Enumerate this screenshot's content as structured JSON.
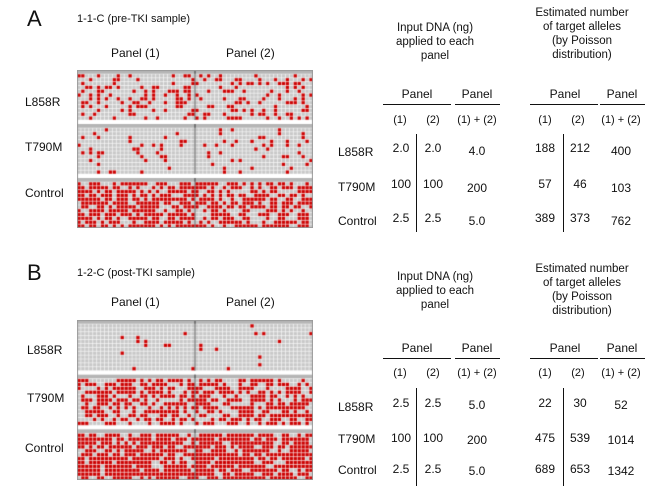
{
  "figure": {
    "sections": [
      {
        "letter": "A",
        "sample": "1-1-C  (pre-TKI  sample)",
        "panels": [
          "Panel (1)",
          "Panel (2)"
        ],
        "genes": [
          "L858R",
          "T790M",
          "Control"
        ],
        "input_header": [
          "Input DNA  (ng)",
          "applied to each",
          "panel"
        ],
        "estimated_header": [
          "Estimated number",
          "of target alleles",
          "(by Poisson",
          "distribution)"
        ],
        "table_panel_label": "Panel",
        "col1": "(1)",
        "col2": "(2)",
        "col_sum": "(1) + (2)",
        "rows": [
          {
            "gene": "L858R",
            "in1": "2.0",
            "in2": "2.0",
            "insum": "4.0",
            "est1": "188",
            "est2": "212",
            "estsum": "400"
          },
          {
            "gene": "T790M",
            "in1": "100",
            "in2": "100",
            "insum": "200",
            "est1": "57",
            "est2": "46",
            "estsum": "103"
          },
          {
            "gene": "Control",
            "in1": "2.5",
            "in2": "2.5",
            "insum": "5.0",
            "est1": "389",
            "est2": "373",
            "estsum": "762"
          }
        ]
      },
      {
        "letter": "B",
        "sample": "1-2-C  (post-TKI  sample)",
        "panels": [
          "Panel (1)",
          "Panel (2)"
        ],
        "genes": [
          "L858R",
          "T790M",
          "Control"
        ],
        "input_header": [
          "Input DNA  (ng)",
          "applied to each",
          "panel"
        ],
        "estimated_header": [
          "Estimated number",
          "of target alleles",
          "(by Poisson",
          "distribution)"
        ],
        "table_panel_label": "Panel",
        "col1": "(1)",
        "col2": "(2)",
        "col_sum": "(1) + (2)",
        "rows": [
          {
            "gene": "L858R",
            "in1": "2.5",
            "in2": "2.5",
            "insum": "5.0",
            "est1": "22",
            "est2": "30",
            "estsum": "52"
          },
          {
            "gene": "T790M",
            "in1": "100",
            "in2": "100",
            "insum": "200",
            "est1": "475",
            "est2": "539",
            "estsum": "1014"
          },
          {
            "gene": "Control",
            "in1": "2.5",
            "in2": "2.5",
            "insum": "5.0",
            "est1": "689",
            "est2": "653",
            "estsum": "1342"
          }
        ]
      }
    ],
    "colors": {
      "positive": "#cc0000",
      "negative": "#c8c8c8",
      "grid_line": "#ffffff"
    },
    "positive_fraction_estimates": {
      "A": [
        0.3,
        0.1,
        0.62
      ],
      "B": [
        0.04,
        0.55,
        0.78
      ]
    }
  }
}
